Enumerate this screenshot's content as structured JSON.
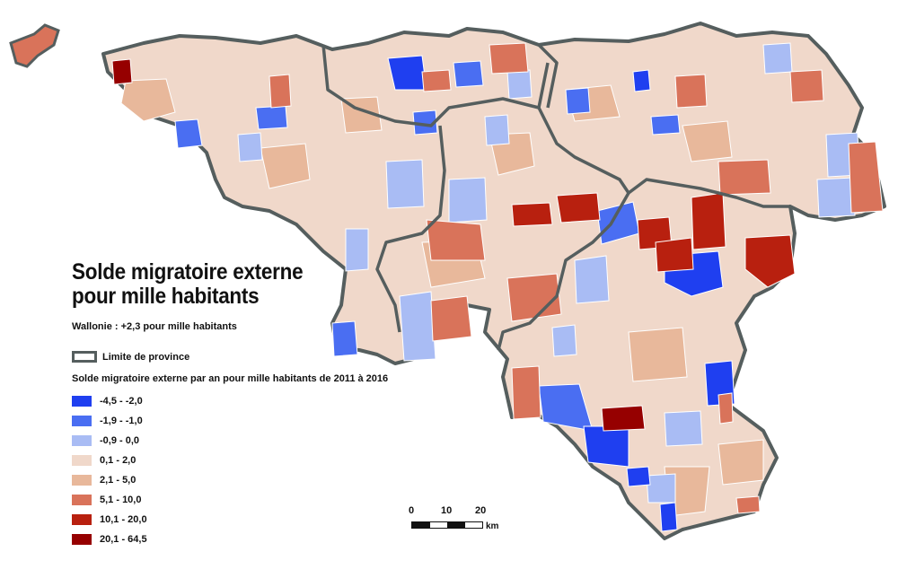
{
  "title_line1": "Solde migratoire externe",
  "title_line2": "pour mille habitants",
  "subtitle": "Wallonie : +2,3 pour mille habitants",
  "limit_label": "Limite de province",
  "legend_title": "Solde migratoire externe par an pour mille habitants de 2011 à 2016",
  "legend": [
    {
      "label": "-4,5 - -2,0",
      "color": "#1f3ff0"
    },
    {
      "label": "-1,9 - -1,0",
      "color": "#4a6ef2"
    },
    {
      "label": "-0,9 - 0,0",
      "color": "#a9bcf4"
    },
    {
      "label": "0,1 - 2,0",
      "color": "#f0d8ca"
    },
    {
      "label": "2,1 - 5,0",
      "color": "#e8b89b"
    },
    {
      "label": "5,1 - 10,0",
      "color": "#d9735a"
    },
    {
      "label": "10,1 - 20,0",
      "color": "#b8200f"
    },
    {
      "label": "20,1 - 64,5",
      "color": "#960000"
    }
  ],
  "scale": {
    "t0": "0",
    "t1": "10",
    "t2": "20",
    "unit": "km"
  },
  "colors": {
    "border": "#555e5e",
    "muni_line": "#ffffff",
    "base": "#f0d8ca"
  }
}
